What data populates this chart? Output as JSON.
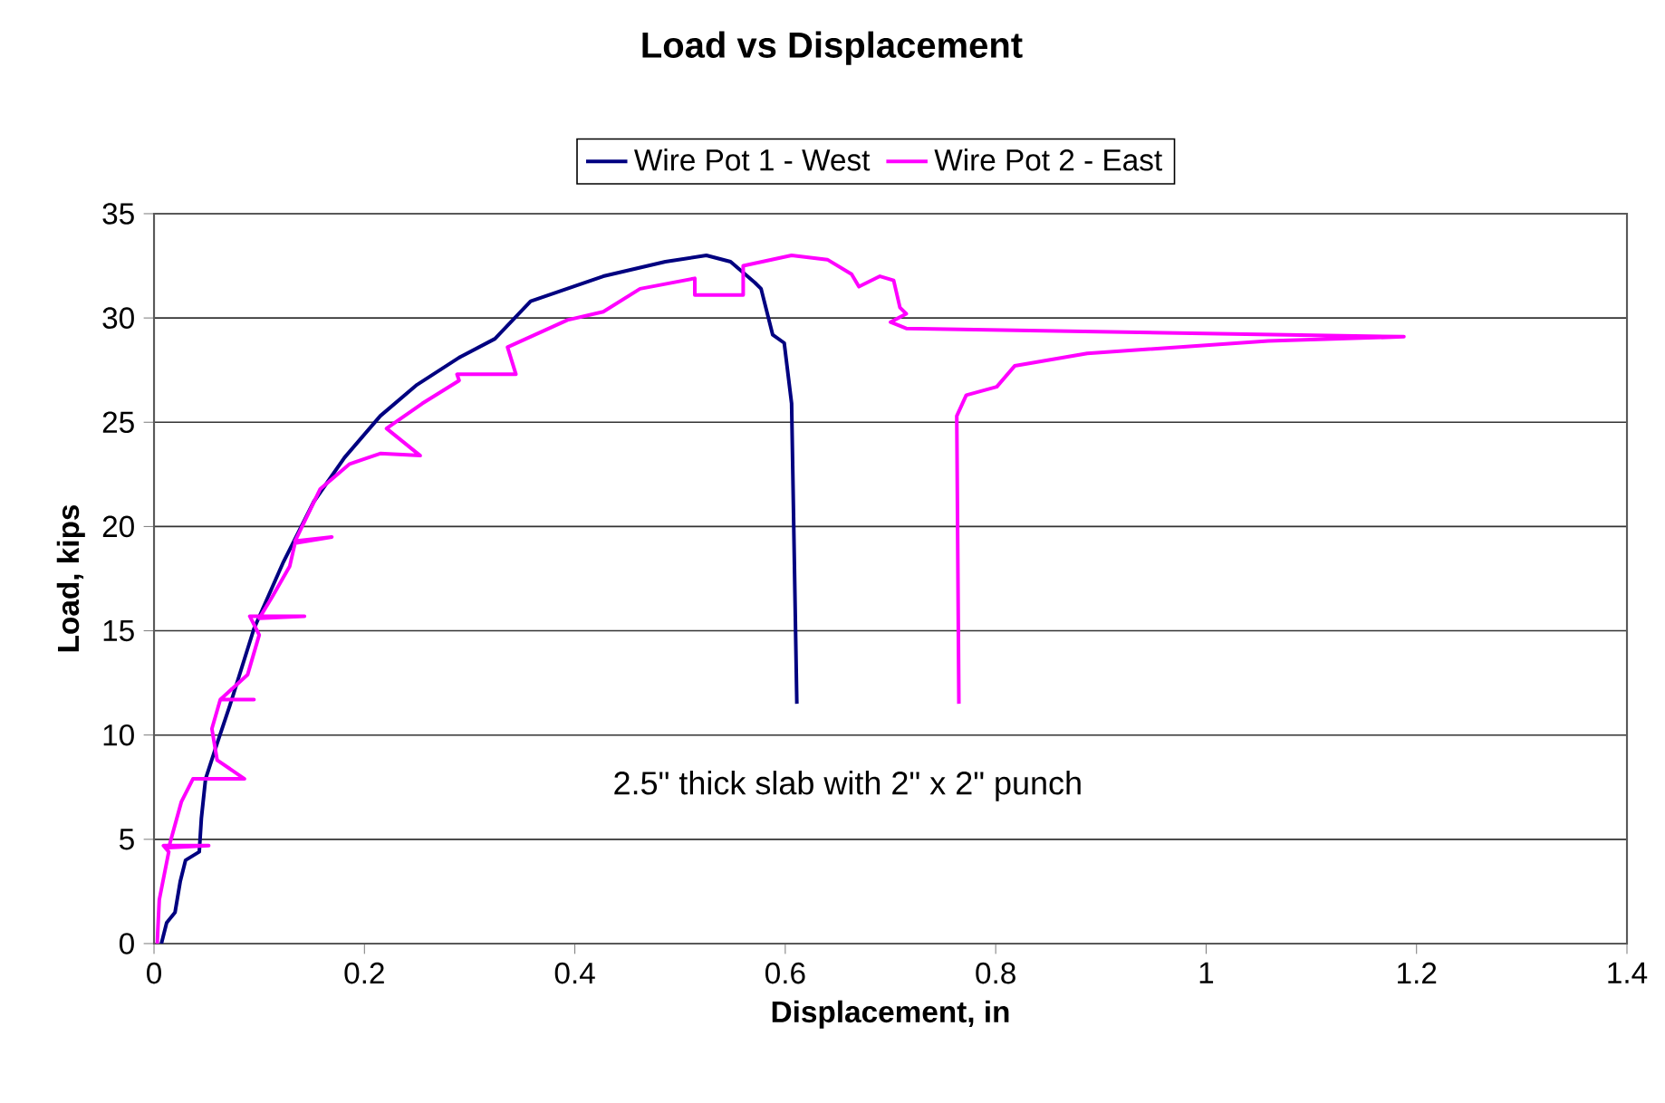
{
  "chart_data": {
    "type": "line",
    "title": "Load vs Displacement",
    "xlabel": "Displacement, in",
    "ylabel": "Load, kips",
    "xlim": [
      0,
      1.4
    ],
    "xticks": [
      0,
      0.2,
      0.4,
      0.6,
      0.8,
      1,
      1.2,
      1.4
    ],
    "ylim": [
      0,
      35
    ],
    "yticks": [
      0,
      5,
      10,
      15,
      20,
      25,
      30,
      35
    ],
    "grid": "y",
    "legend": "top",
    "marker": "none",
    "line_style": "solid",
    "annotations": [
      "2.5\" thick slab with 2\" x 2\" punch"
    ],
    "series": [
      {
        "name": "Wire Pot 1 - West",
        "color": "#000080",
        "x": [
          0.007,
          0.012,
          0.02,
          0.025,
          0.03,
          0.043,
          0.045,
          0.049,
          0.06,
          0.072,
          0.095,
          0.123,
          0.152,
          0.181,
          0.215,
          0.25,
          0.29,
          0.324,
          0.358,
          0.427,
          0.486,
          0.525,
          0.548,
          0.571,
          0.577,
          0.588,
          0.599,
          0.606,
          0.611
        ],
        "values": [
          0,
          1.0,
          1.5,
          3.0,
          4.0,
          4.4,
          6.0,
          7.9,
          9.6,
          11.4,
          15.1,
          18.3,
          21.2,
          23.3,
          25.3,
          26.8,
          28.1,
          29.0,
          30.8,
          32.0,
          32.7,
          33.0,
          32.7,
          31.7,
          31.4,
          29.2,
          28.8,
          25.9,
          11.5
        ]
      },
      {
        "name": "Wire Pot 2 - East",
        "color": "#ff00ff",
        "x": [
          0.003,
          0.005,
          0.014,
          0.009,
          0.052,
          0.014,
          0.026,
          0.037,
          0.086,
          0.06,
          0.055,
          0.063,
          0.095,
          0.063,
          0.089,
          0.1,
          0.091,
          0.143,
          0.1,
          0.112,
          0.129,
          0.134,
          0.169,
          0.134,
          0.158,
          0.186,
          0.215,
          0.253,
          0.221,
          0.255,
          0.29,
          0.288,
          0.344,
          0.336,
          0.393,
          0.427,
          0.462,
          0.514,
          0.514,
          0.56,
          0.56,
          0.606,
          0.64,
          0.663,
          0.67,
          0.69,
          0.703,
          0.709,
          0.715,
          0.7,
          0.715,
          1.188,
          1.059,
          0.887,
          0.818,
          0.801,
          0.772,
          0.763,
          0.765
        ],
        "values": [
          0,
          2.1,
          4.4,
          4.7,
          4.7,
          4.6,
          6.8,
          7.9,
          7.9,
          8.8,
          10.3,
          11.7,
          11.7,
          11.7,
          12.9,
          14.8,
          15.7,
          15.7,
          15.6,
          16.6,
          18.1,
          19.2,
          19.5,
          19.3,
          21.8,
          23.0,
          23.5,
          23.4,
          24.7,
          25.9,
          27.0,
          27.3,
          27.3,
          28.6,
          29.9,
          30.3,
          31.4,
          31.9,
          31.1,
          31.1,
          32.5,
          33.0,
          32.8,
          32.1,
          31.5,
          32.0,
          31.8,
          30.5,
          30.2,
          29.8,
          29.5,
          29.1,
          28.9,
          28.3,
          27.7,
          26.7,
          26.3,
          25.3,
          11.5
        ]
      }
    ]
  }
}
